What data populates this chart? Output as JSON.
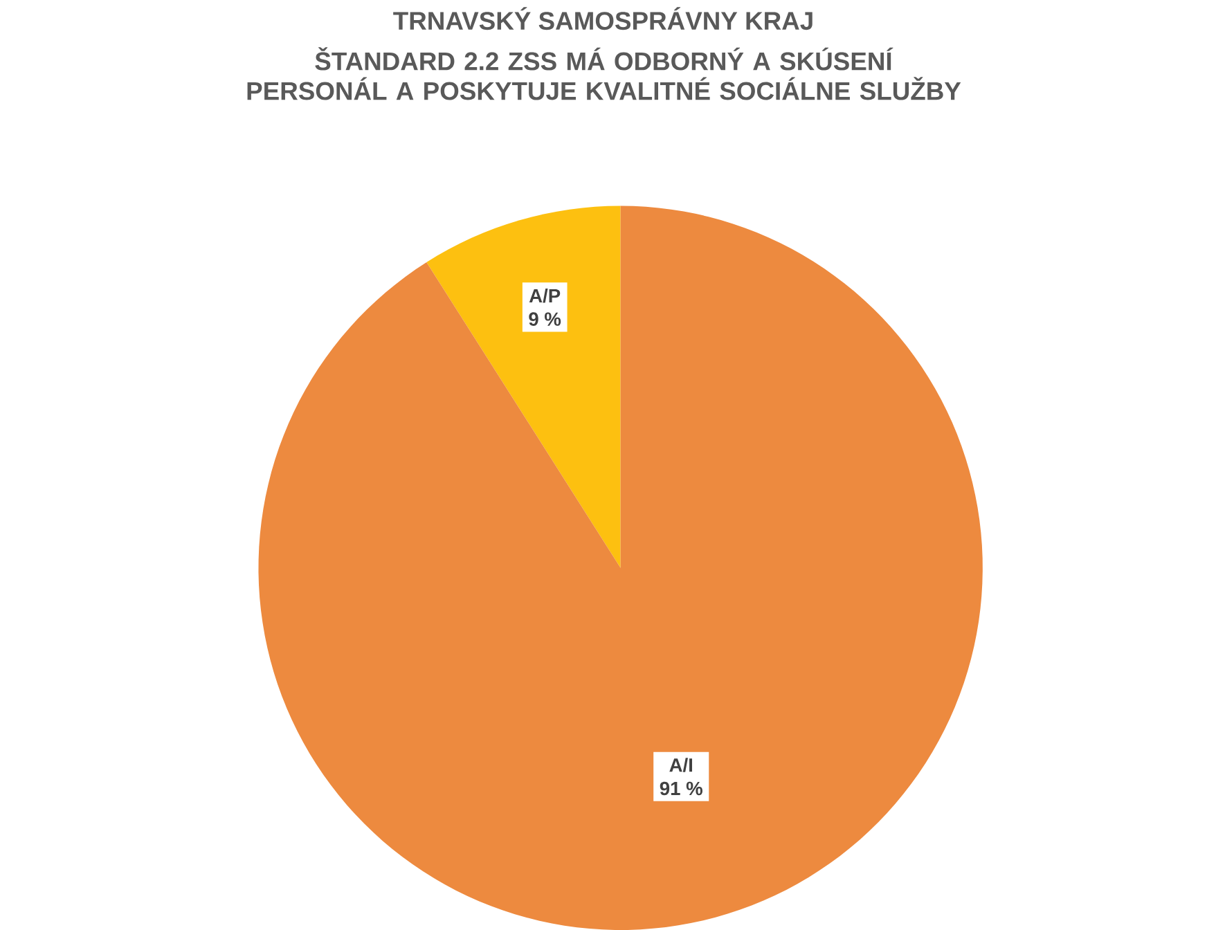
{
  "chart_data": {
    "type": "pie",
    "title": "TRNAVSKÝ SAMOSPRÁVNY KRAJ",
    "subtitle": "ŠTANDARD 2.2 ZSS MÁ ODBORNÝ A SKÚSENÍ PERSONÁL A POSKYTUJE KVALITNÉ SOCIÁLNE SLUŽBY",
    "categories": [
      "A/P",
      "A/I"
    ],
    "values": [
      9,
      91
    ],
    "colors": [
      "#fdc010",
      "#ed8a3f"
    ],
    "value_labels": [
      "9 %",
      "91 %"
    ]
  }
}
